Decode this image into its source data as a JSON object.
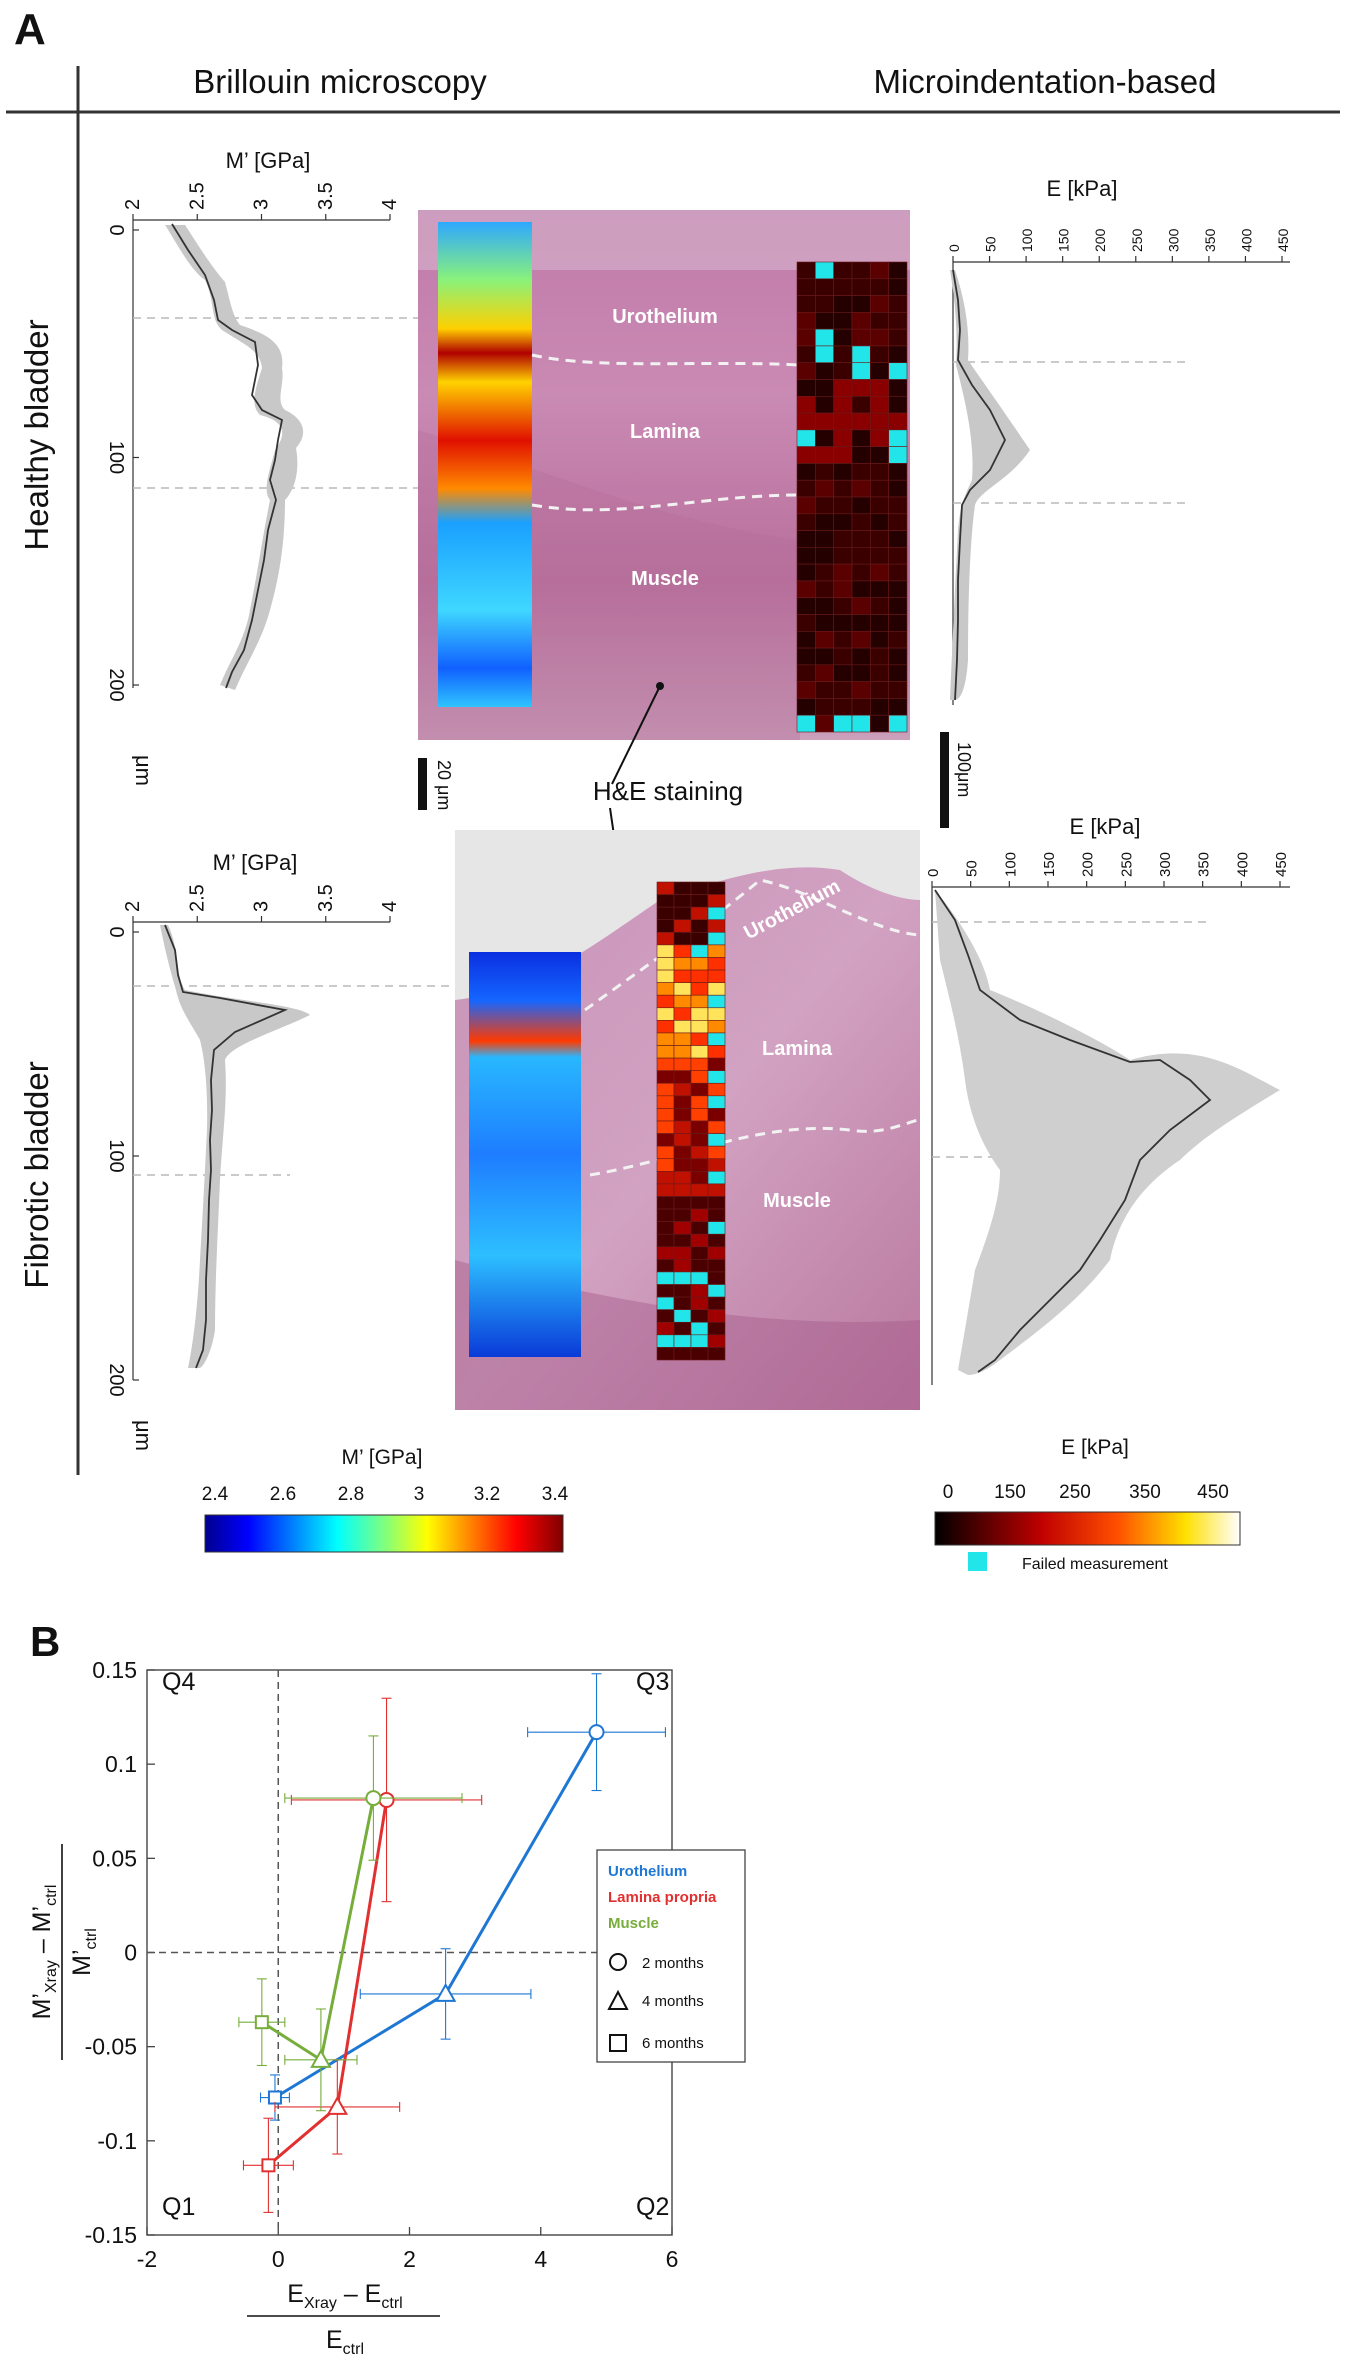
{
  "panel_a": {
    "label": "A",
    "header_left": "Brillouin  microscopy",
    "header_right": "Microindentation-based",
    "row_healthy": "Healthy  bladder",
    "row_fibrotic": "Fibrotic bladder",
    "brillouin_axis_title": "M’ [GPa]",
    "brillouin_ticks": [
      "2",
      "2.5",
      "3",
      "3.5",
      "4"
    ],
    "depth_ticks": [
      "0",
      "100",
      "200"
    ],
    "depth_unit": "μm",
    "indent_axis_title": "E [kPa]",
    "indent_ticks": [
      "0",
      "50",
      "100",
      "150",
      "200",
      "250",
      "300",
      "350",
      "400",
      "450"
    ],
    "scale_bar_small": "20 μm",
    "scale_bar_large": "100μm",
    "he_label": "H&E staining",
    "tissue_labels": {
      "healthy_urothelium": "Urothelium",
      "healthy_lamina": "Lamina",
      "healthy_muscle": "Muscle",
      "fibrotic_urothelium": "Urothelium",
      "fibrotic_lamina": "Lamina",
      "fibrotic_muscle": "Muscle"
    },
    "colorbar_m": {
      "title": "M’  [GPa]",
      "ticks": [
        "2.4",
        "2.6",
        "2.8",
        "3",
        "3.2",
        "3.4"
      ]
    },
    "colorbar_e": {
      "title": "E [kPa]",
      "ticks": [
        "0",
        "150",
        "250",
        "350",
        "450"
      ],
      "failed": "Failed measurement"
    }
  },
  "panel_b": {
    "label": "B",
    "quadrants": [
      "Q1",
      "Q2",
      "Q3",
      "Q4"
    ],
    "legend": {
      "series": [
        "Urothelium",
        "Lamina propria",
        "Muscle"
      ],
      "timepoints": [
        "2 months",
        "4 months",
        "6 months"
      ]
    },
    "ylabel_num_main": "M’",
    "ylabel_num_sub1": "Xray",
    "ylabel_num_mid": " – M’",
    "ylabel_num_sub2": "ctrl",
    "ylabel_den_main": "M’",
    "ylabel_den_sub": "ctrl",
    "xlabel_num_main": "E",
    "xlabel_num_sub1": "Xray",
    "xlabel_num_mid": " – E",
    "xlabel_num_sub2": "ctrl",
    "xlabel_den_main": "E",
    "xlabel_den_sub": "ctrl"
  },
  "chart_data": {
    "type": "scatter",
    "title": "",
    "xlabel": "(E_Xray – E_ctrl) / E_ctrl",
    "ylabel": "(M’_Xray – M’_ctrl) / M’_ctrl",
    "xlim": [
      -2,
      6
    ],
    "ylim": [
      -0.15,
      0.15
    ],
    "xticks": [
      "-2",
      "0",
      "2",
      "4",
      "6"
    ],
    "yticks": [
      "-0.15",
      "-0.1",
      "-0.05",
      "0",
      "0.05",
      "0.1",
      "0.15"
    ],
    "series": [
      {
        "name": "Urothelium",
        "color": "#1f77d4",
        "points": [
          {
            "t": "2 months",
            "marker": "circle",
            "x": 4.85,
            "y": 0.117,
            "xerr": 1.05,
            "yerr": 0.031
          },
          {
            "t": "4 months",
            "marker": "triangle",
            "x": 2.55,
            "y": -0.022,
            "xerr": 1.3,
            "yerr": 0.024
          },
          {
            "t": "6 months",
            "marker": "square",
            "x": -0.05,
            "y": -0.077,
            "xerr": 0.22,
            "yerr": 0.012
          }
        ]
      },
      {
        "name": "Lamina propria",
        "color": "#e23030",
        "points": [
          {
            "t": "2 months",
            "marker": "circle",
            "x": 1.65,
            "y": 0.081,
            "xerr": 1.45,
            "yerr": 0.054
          },
          {
            "t": "4 months",
            "marker": "triangle",
            "x": 0.9,
            "y": -0.082,
            "xerr": 0.95,
            "yerr": 0.025
          },
          {
            "t": "6 months",
            "marker": "square",
            "x": -0.15,
            "y": -0.113,
            "xerr": 0.38,
            "yerr": 0.025
          }
        ]
      },
      {
        "name": "Muscle",
        "color": "#77ad3a",
        "points": [
          {
            "t": "2 months",
            "marker": "circle",
            "x": 1.45,
            "y": 0.082,
            "xerr": 1.35,
            "yerr": 0.033
          },
          {
            "t": "4 months",
            "marker": "triangle",
            "x": 0.65,
            "y": -0.057,
            "xerr": 0.55,
            "yerr": 0.027
          },
          {
            "t": "6 months",
            "marker": "square",
            "x": -0.25,
            "y": -0.037,
            "xerr": 0.35,
            "yerr": 0.023
          }
        ]
      }
    ],
    "legend_position": "right"
  },
  "colors": {
    "urothelium": "#1f77d4",
    "lamina": "#e23030",
    "muscle": "#77ad3a",
    "failed": "#22e5ea",
    "he_stain": "#b77aa4"
  }
}
